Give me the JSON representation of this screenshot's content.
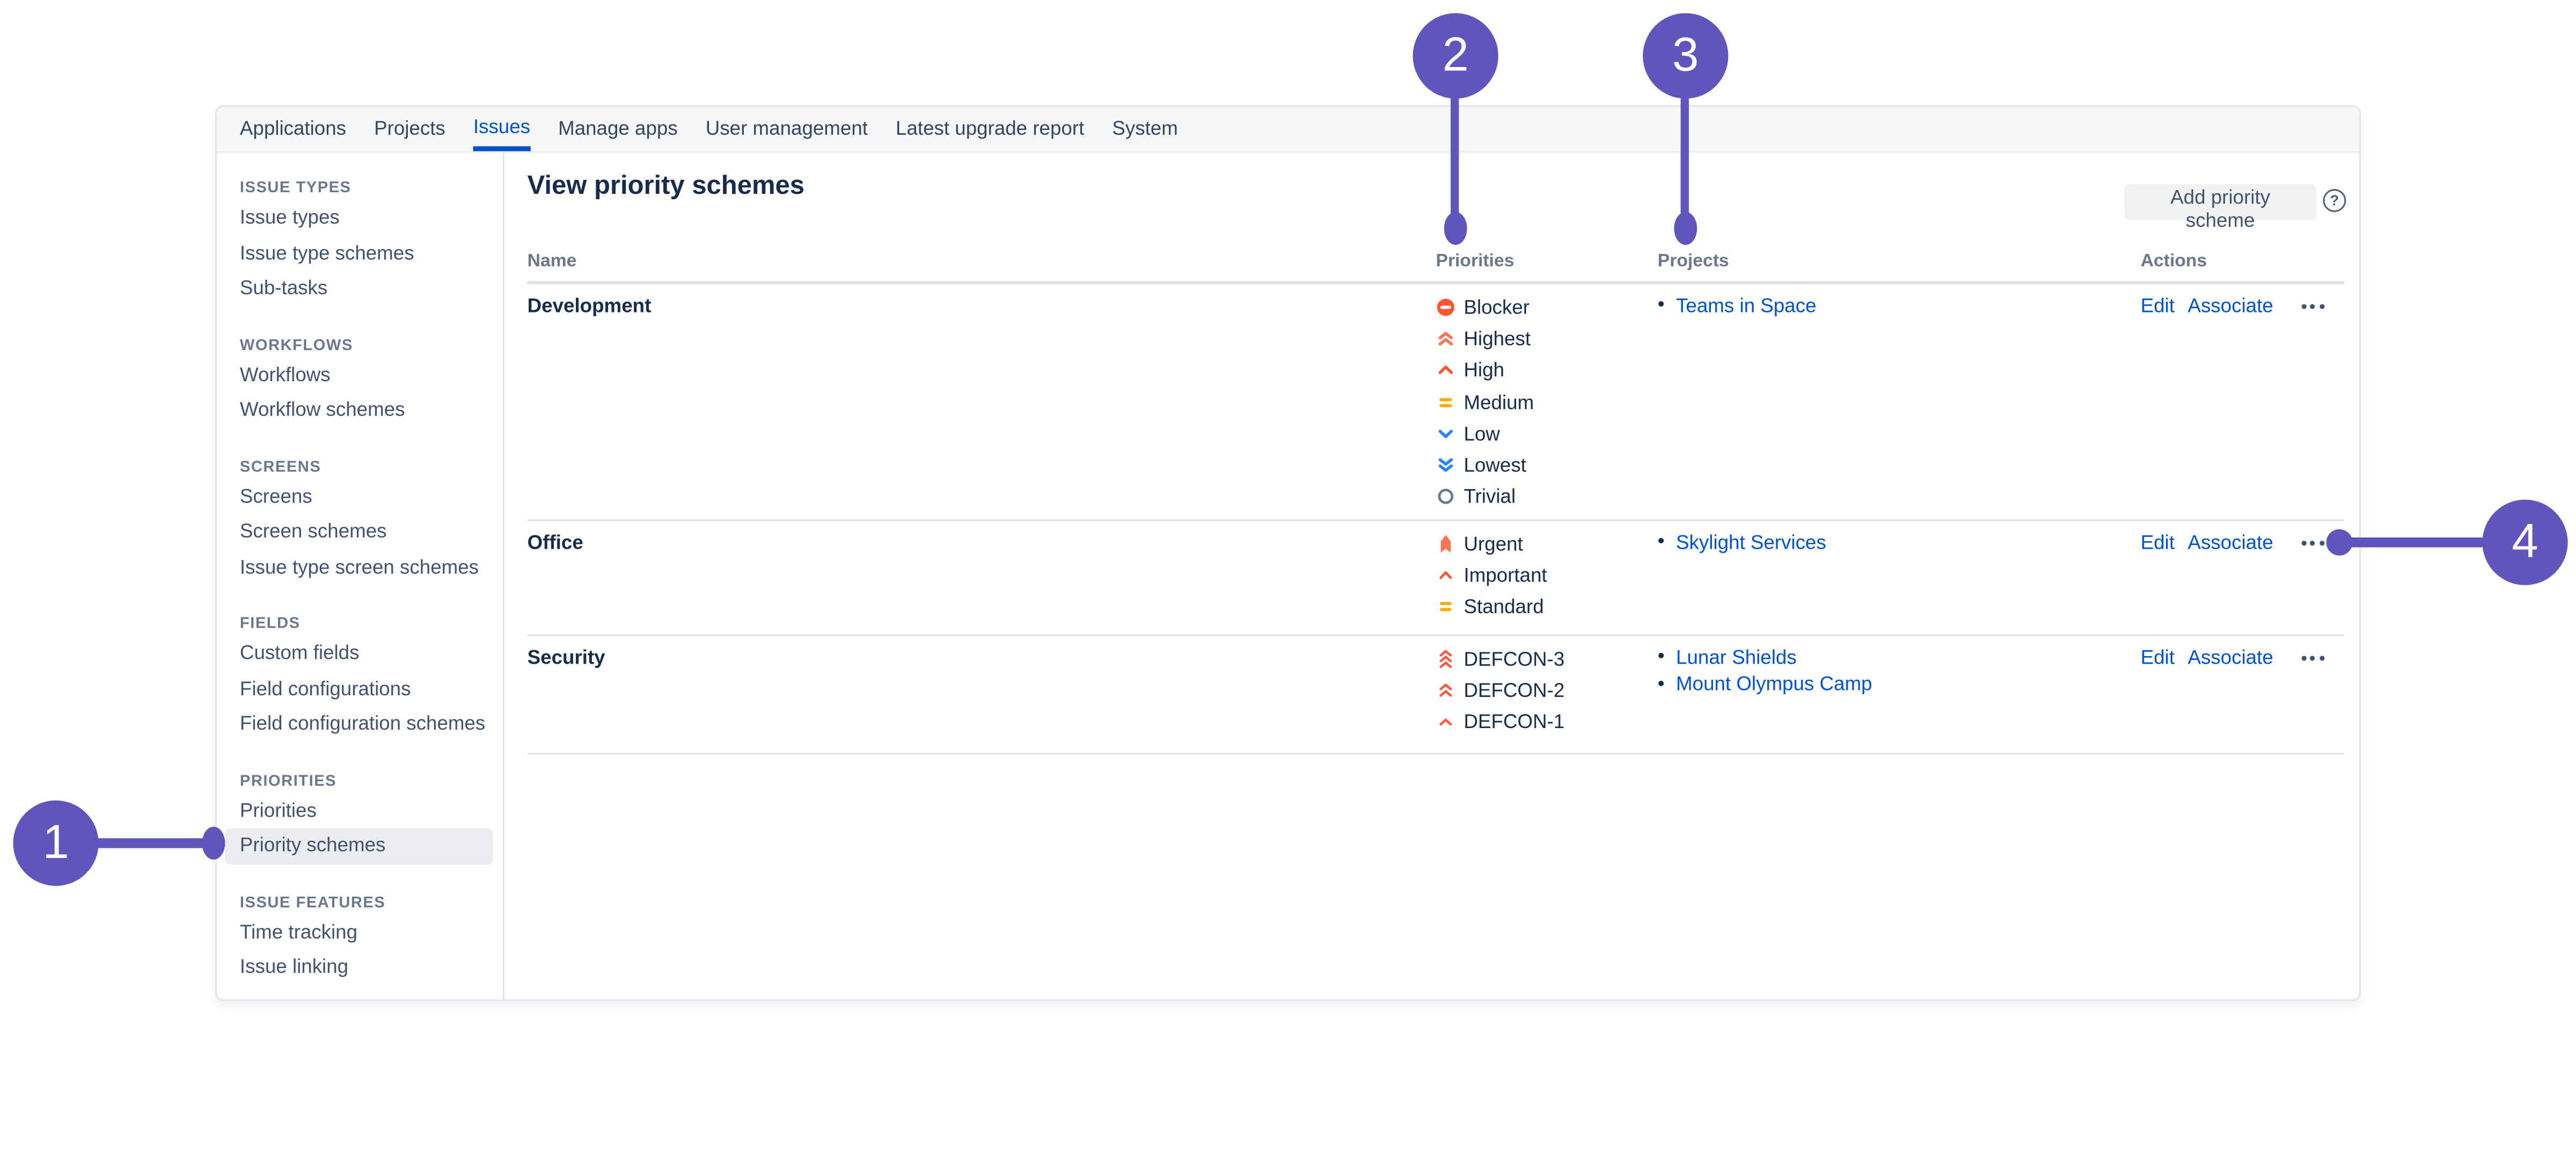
{
  "nav": {
    "items": [
      {
        "label": "Applications"
      },
      {
        "label": "Projects"
      },
      {
        "label": "Issues",
        "active": true
      },
      {
        "label": "Manage apps"
      },
      {
        "label": "User management"
      },
      {
        "label": "Latest upgrade report"
      },
      {
        "label": "System"
      }
    ]
  },
  "sidebar": {
    "sections": [
      {
        "title": "ISSUE TYPES",
        "items": [
          "Issue types",
          "Issue type schemes",
          "Sub-tasks"
        ]
      },
      {
        "title": "WORKFLOWS",
        "items": [
          "Workflows",
          "Workflow schemes"
        ]
      },
      {
        "title": "SCREENS",
        "items": [
          "Screens",
          "Screen schemes",
          "Issue type screen schemes"
        ]
      },
      {
        "title": "FIELDS",
        "items": [
          "Custom fields",
          "Field configurations",
          "Field configuration schemes"
        ]
      },
      {
        "title": "PRIORITIES",
        "items": [
          "Priorities",
          "Priority schemes"
        ]
      },
      {
        "title": "ISSUE FEATURES",
        "items": [
          "Time tracking",
          "Issue linking"
        ]
      }
    ],
    "selected_item": "Priority schemes"
  },
  "header": {
    "title": "View priority schemes",
    "add_button": "Add priority scheme",
    "help_glyph": "?",
    "help_icon": "question-mark-icon"
  },
  "table": {
    "columns": [
      "Name",
      "Priorities",
      "Projects",
      "Actions"
    ],
    "bullet": "•",
    "rows": [
      {
        "name": "Development",
        "priorities": [
          {
            "label": "Blocker",
            "icon": "blocker-icon"
          },
          {
            "label": "Highest",
            "icon": "highest-icon"
          },
          {
            "label": "High",
            "icon": "high-icon"
          },
          {
            "label": "Medium",
            "icon": "medium-icon"
          },
          {
            "label": "Low",
            "icon": "low-icon"
          },
          {
            "label": "Lowest",
            "icon": "lowest-icon"
          },
          {
            "label": "Trivial",
            "icon": "trivial-icon"
          }
        ],
        "projects": [
          "Teams in Space"
        ],
        "actions": {
          "edit": "Edit",
          "associate": "Associate",
          "more_icon": "more-options-icon"
        }
      },
      {
        "name": "Office",
        "priorities": [
          {
            "label": "Urgent",
            "icon": "urgent-icon"
          },
          {
            "label": "Important",
            "icon": "important-icon"
          },
          {
            "label": "Standard",
            "icon": "standard-icon"
          }
        ],
        "projects": [
          "Skylight Services"
        ],
        "actions": {
          "edit": "Edit",
          "associate": "Associate",
          "more_icon": "more-options-icon"
        }
      },
      {
        "name": "Security",
        "priorities": [
          {
            "label": "DEFCON-3",
            "icon": "defcon3-icon"
          },
          {
            "label": "DEFCON-2",
            "icon": "defcon2-icon"
          },
          {
            "label": "DEFCON-1",
            "icon": "defcon1-icon"
          }
        ],
        "projects": [
          "Lunar Shields",
          "Mount Olympus Camp"
        ],
        "actions": {
          "edit": "Edit",
          "associate": "Associate",
          "more_icon": "more-options-icon"
        }
      }
    ]
  },
  "callouts": [
    {
      "number": "1"
    },
    {
      "number": "2"
    },
    {
      "number": "3"
    },
    {
      "number": "4"
    }
  ],
  "colors": {
    "callout_purple": "#6254BD",
    "link_blue": "#0052CC",
    "active_nav_blue": "#0052CC",
    "blocker_red": "#FF5630",
    "highest_salmon": "#FF7452",
    "medium_orange": "#FFAB00",
    "low_blue": "#2684FF",
    "trivial_gray": "#6B778C",
    "divider_gray": "#DFE1E6"
  }
}
